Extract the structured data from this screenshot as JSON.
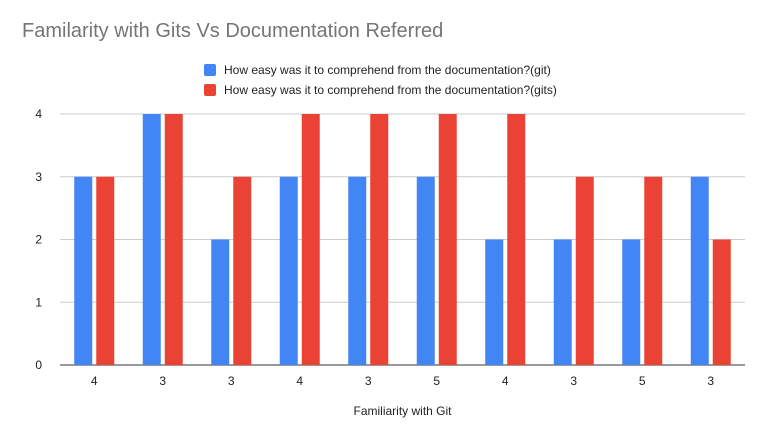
{
  "chart_data": {
    "type": "bar",
    "title": "Familarity with Gits Vs Documentation Referred",
    "xlabel": "Familiarity with Git",
    "ylabel": "",
    "categories": [
      "4",
      "3",
      "3",
      "4",
      "3",
      "5",
      "4",
      "3",
      "5",
      "3"
    ],
    "ylim": [
      0,
      4
    ],
    "yticks": [
      0,
      1,
      2,
      3,
      4
    ],
    "grid": true,
    "legend_position": "top",
    "series": [
      {
        "name": "How easy was it to comprehend from the documentation?(git)",
        "color": "#4285f4",
        "values": [
          3,
          4,
          2,
          3,
          3,
          3,
          2,
          2,
          2,
          3
        ]
      },
      {
        "name": "How easy was it to comprehend from the documentation?(gits)",
        "color": "#ea4335",
        "values": [
          3,
          4,
          3,
          4,
          4,
          4,
          4,
          3,
          3,
          2
        ]
      }
    ]
  }
}
